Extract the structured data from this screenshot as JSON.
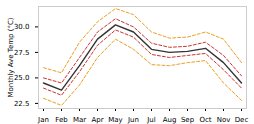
{
  "chart_data": {
    "type": "line",
    "ylabel": "Monthly Ave Temp (°C)",
    "categories": [
      "Jan",
      "Feb",
      "Mar",
      "Apr",
      "May",
      "Jun",
      "Jul",
      "Aug",
      "Sep",
      "Oct",
      "Nov",
      "Dec"
    ],
    "series": [
      {
        "color": "#e8a020",
        "line_style": "dashed",
        "values": [
          26.0,
          25.5,
          28.5,
          30.5,
          31.8,
          31.2,
          29.5,
          28.9,
          29.0,
          29.5,
          28.8,
          26.5
        ]
      },
      {
        "color": "#e8a020",
        "line_style": "dashed",
        "values": [
          23.0,
          22.3,
          24.3,
          27.0,
          28.8,
          27.8,
          26.3,
          26.2,
          26.5,
          26.7,
          24.5,
          22.8
        ]
      },
      {
        "color": "#cc3333",
        "line_style": "dashed",
        "values": [
          25.0,
          24.5,
          27.0,
          29.5,
          30.8,
          30.0,
          28.4,
          28.0,
          28.1,
          28.5,
          27.2,
          25.2
        ]
      },
      {
        "color": "#cc3333",
        "line_style": "dashed",
        "values": [
          24.0,
          23.3,
          25.6,
          28.2,
          29.7,
          29.0,
          27.3,
          27.0,
          27.2,
          27.4,
          25.8,
          24.0
        ]
      },
      {
        "color": "#333333",
        "line_style": "solid",
        "values": [
          24.5,
          23.8,
          26.2,
          28.8,
          30.2,
          29.5,
          27.8,
          27.5,
          27.6,
          27.9,
          26.5,
          24.5
        ]
      }
    ],
    "ylim": [
      22.0,
      32.0
    ],
    "yticks": [
      22.5,
      {
        "value": 25.0,
        "label": "25.0"
      },
      27.5,
      {
        "value": 30.0,
        "label": "30.0"
      }
    ],
    "grid": false
  }
}
